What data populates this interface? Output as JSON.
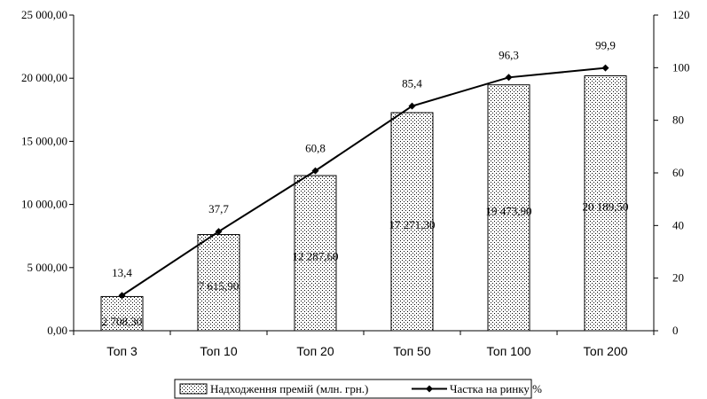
{
  "chart_data": {
    "type": "bar",
    "categories": [
      "Топ 3",
      "Топ 10",
      "Топ 20",
      "Топ 50",
      "Топ 100",
      "Топ 200"
    ],
    "series": [
      {
        "name": "Надходження премій (млн. грн.)",
        "type": "bar",
        "axis": "left",
        "values": [
          2708.3,
          7615.9,
          12287.6,
          17271.3,
          19473.9,
          20189.5
        ],
        "labels": [
          "2 708,30",
          "7 615,90",
          "12 287,60",
          "17 271,30",
          "19 473,90",
          "20 189,50"
        ]
      },
      {
        "name": "Частка на ринку %",
        "type": "line",
        "axis": "right",
        "values": [
          13.4,
          37.7,
          60.8,
          85.4,
          96.3,
          99.9
        ],
        "labels": [
          "13,4",
          "37,7",
          "60,8",
          "85,4",
          "96,3",
          "99,9"
        ]
      }
    ],
    "y_left": {
      "ylim": [
        0,
        25000
      ],
      "ticks": [
        "0,00",
        "5 000,00",
        "10 000,00",
        "15 000,00",
        "20 000,00",
        "25 000,00"
      ]
    },
    "y_right": {
      "ylim": [
        0,
        120
      ],
      "ticks": [
        "0",
        "20",
        "40",
        "60",
        "80",
        "100",
        "120"
      ]
    },
    "grid": false,
    "legend_position": "bottom"
  }
}
